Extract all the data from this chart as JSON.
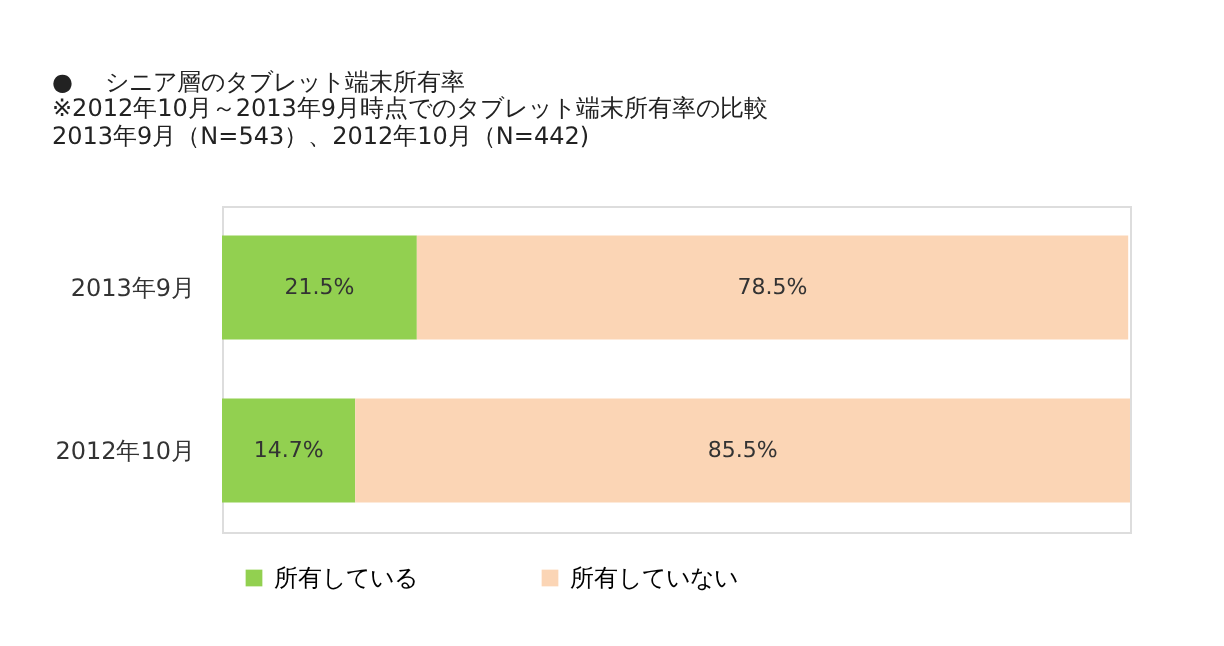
{
  "chart_data": {
    "type": "bar",
    "orientation": "horizontal",
    "stacked": true,
    "tick_labels": "y",
    "title": "●　 シニア層のタブレット端末所有率",
    "subtitle": "※2012年10月～2013年9月時点でのタブレット端末所有率の比較\n2013年9月（N=543）、2012年10月（N=442)",
    "categories": [
      "2013年9月",
      "2012年10月"
    ],
    "series": [
      {
        "name": "所有している",
        "color": "#92d050",
        "values": [
          21.5,
          14.7
        ],
        "value_labels": [
          "21.5%",
          "14.7%"
        ]
      },
      {
        "name": "所有していない",
        "color": "#fbd5b5",
        "values": [
          78.5,
          85.5
        ],
        "value_labels": [
          "78.5%",
          "85.5%"
        ]
      }
    ],
    "legend": "bottom",
    "grid": false
  }
}
